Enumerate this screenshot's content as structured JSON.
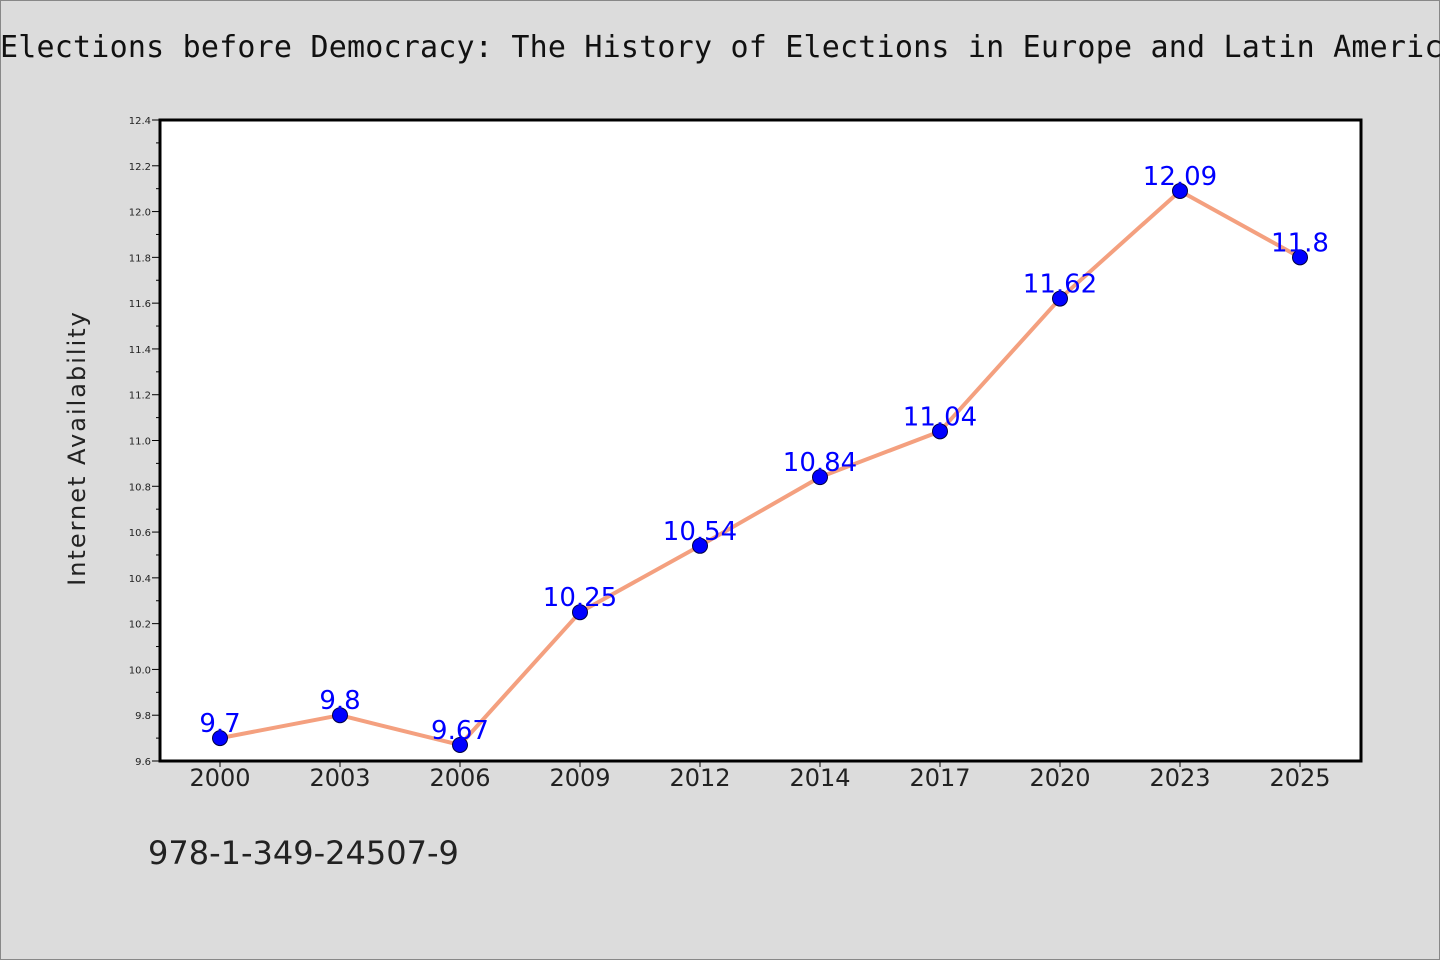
{
  "title": "Elections before Democracy: The History of Elections in Europe and Latin America",
  "footer": {
    "isbn": "978-1-349-24507-9"
  },
  "colors": {
    "background": "#dcdcdc",
    "plot_background": "#ffffff",
    "line": "#f4a07f",
    "marker": "#0000ff",
    "label": "#0000ff"
  },
  "chart_data": {
    "type": "line",
    "title": "Elections before Democracy: The History of Elections in Europe and Latin America",
    "xlabel": "",
    "ylabel": "Internet Availability",
    "categories": [
      "2000",
      "2003",
      "2006",
      "2009",
      "2012",
      "2014",
      "2017",
      "2020",
      "2023",
      "2025"
    ],
    "series": [
      {
        "values": [
          9.7,
          9.8,
          9.67,
          10.25,
          10.54,
          10.84,
          11.04,
          11.62,
          12.09,
          11.8
        ],
        "labels": [
          "9.7",
          "9.8",
          "9.67",
          "10.25",
          "10.54",
          "10.84",
          "11.04",
          "11.62",
          "12.09",
          "11.8"
        ]
      }
    ],
    "ylim": [
      9.6,
      12.4
    ],
    "yticks": [
      "9.6",
      "9.8",
      "10.0",
      "10.2",
      "10.4",
      "10.6",
      "10.8",
      "11.0",
      "11.2",
      "11.4",
      "11.6",
      "11.8",
      "12.0",
      "12.2",
      "12.4"
    ],
    "grid": false,
    "legend": "none"
  }
}
